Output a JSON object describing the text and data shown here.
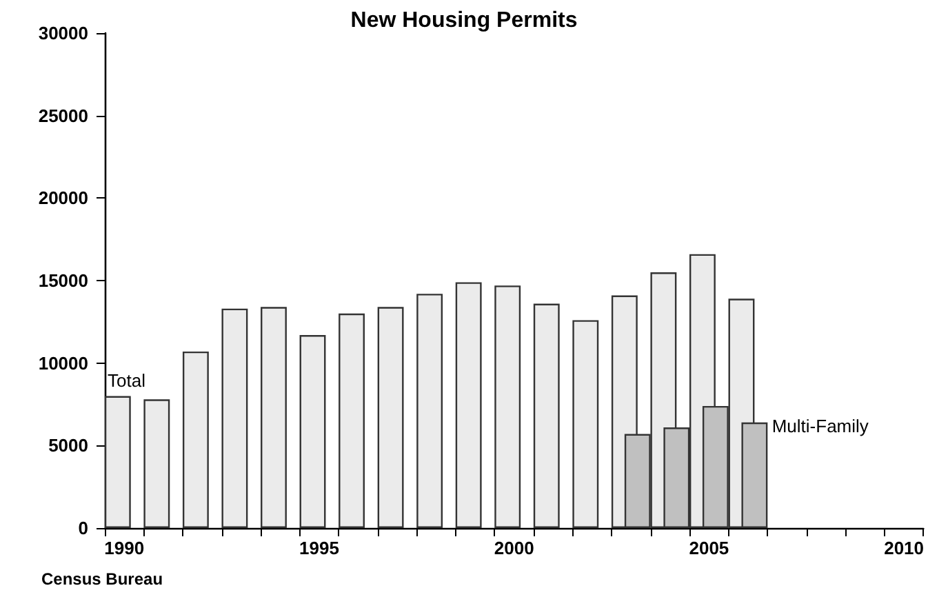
{
  "chart_data": {
    "type": "bar",
    "title": "New Housing Permits",
    "categories": [
      "1990",
      null,
      null,
      null,
      null,
      "1995",
      null,
      null,
      null,
      null,
      "2000",
      null,
      null,
      null,
      null,
      "2005",
      null,
      null,
      null,
      null,
      "2010"
    ],
    "series": [
      {
        "name": "Total",
        "color": "#ebebeb",
        "values": [
          8000,
          7800,
          10700,
          13300,
          13400,
          11700,
          13000,
          13400,
          14200,
          14900,
          14700,
          13600,
          12600,
          14100,
          15500,
          16600,
          13900,
          null,
          null,
          null,
          null
        ]
      },
      {
        "name": "Multi-Family",
        "color": "#c0c0c0",
        "values": [
          null,
          null,
          null,
          null,
          null,
          null,
          null,
          null,
          null,
          null,
          null,
          null,
          null,
          5700,
          6100,
          7400,
          6400,
          null,
          null,
          null,
          null
        ]
      }
    ],
    "ylim": [
      0,
      30000
    ],
    "yticks": [
      0,
      5000,
      10000,
      15000,
      20000,
      25000,
      30000
    ],
    "grid": false,
    "legend": false,
    "annotations": [
      "Census Bureau"
    ]
  }
}
